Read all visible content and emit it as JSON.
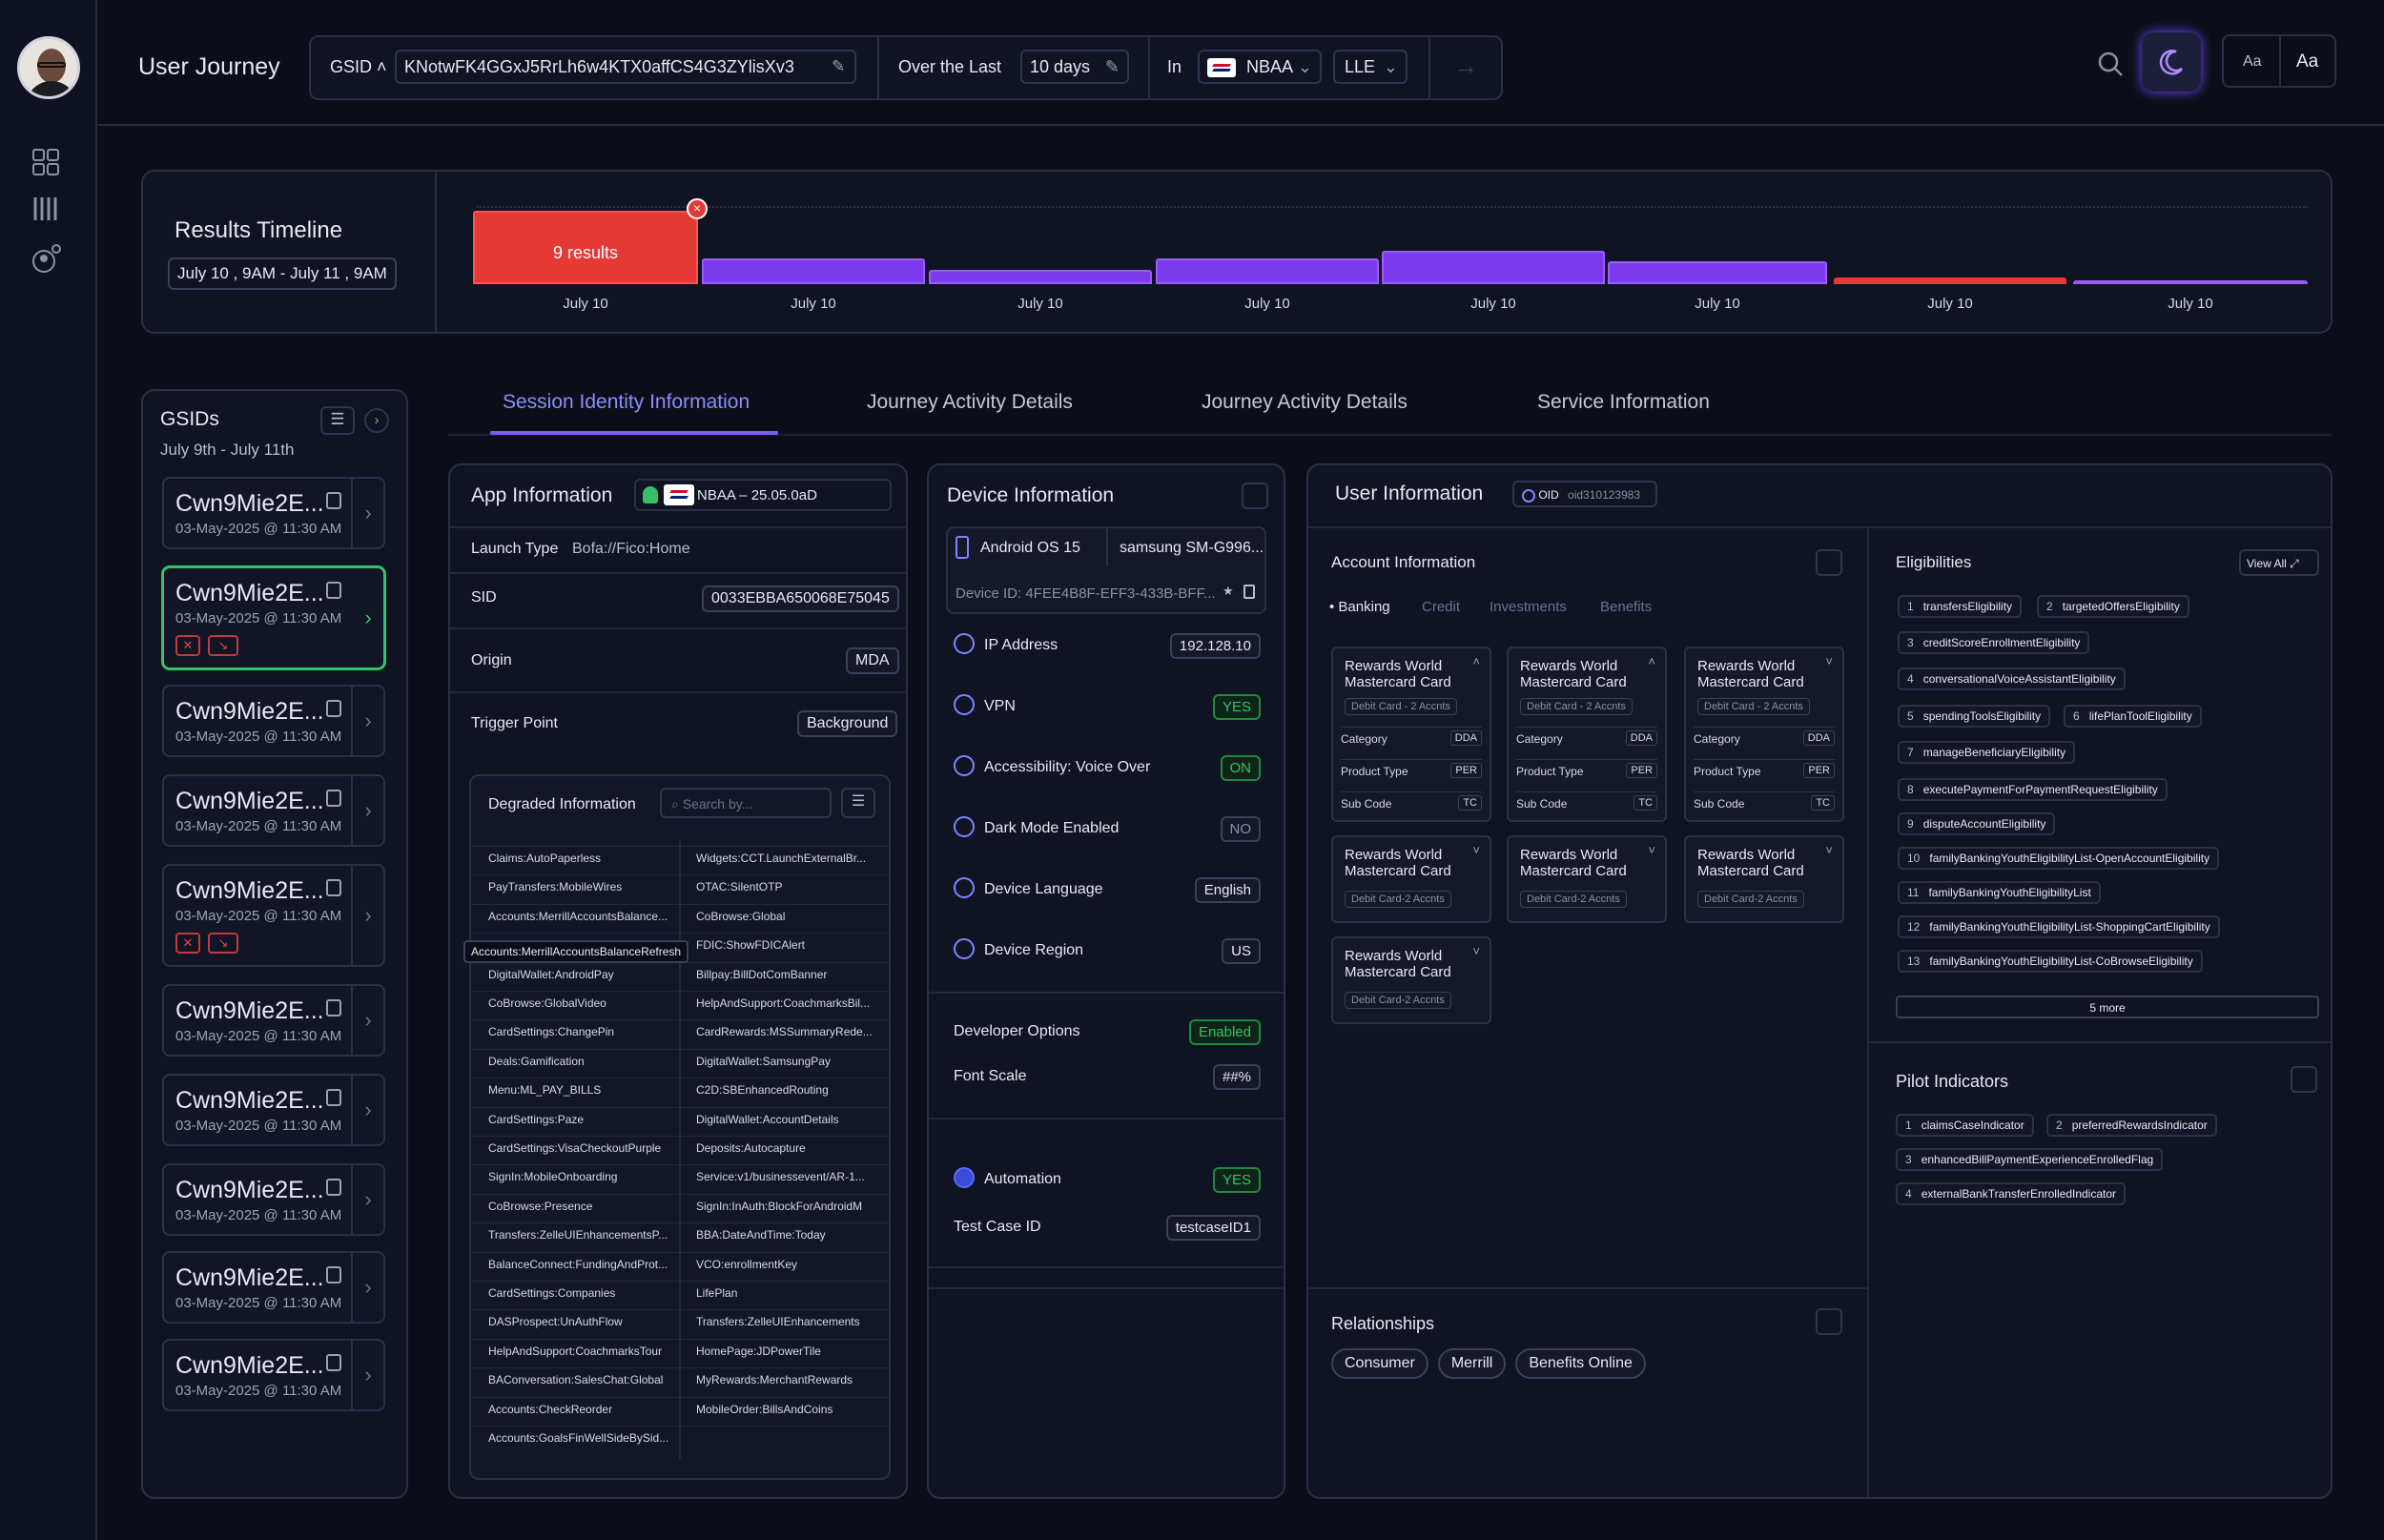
{
  "header": {
    "title": "User Journey",
    "gsid_label": "GSID",
    "gsid_value": "KNotwFK4GGxJ5RrLh6w4KTX0affCS4G3ZYlisXv3",
    "period_label": "Over the Last",
    "period_value": "10 days",
    "in_label": "In",
    "app_value": "NBAA",
    "env_value": "LLE",
    "font_small": "Aa",
    "font_large": "Aa"
  },
  "timeline": {
    "title": "Results Timeline",
    "range": "July 10 , 9AM - July 11 , 9AM",
    "selected_label": "9 results",
    "bars": [
      {
        "label": "July 10",
        "level": 0.92,
        "color": "#e53935"
      },
      {
        "label": "July 10",
        "level": 0.32,
        "color": "#7c3aed"
      },
      {
        "label": "July 10",
        "level": 0.18,
        "color": "#7c3aed"
      },
      {
        "label": "July 10",
        "level": 0.32,
        "color": "#7c3aed"
      },
      {
        "label": "July 10",
        "level": 0.42,
        "color": "#7c3aed"
      },
      {
        "label": "July 10",
        "level": 0.28,
        "color": "#7c3aed"
      },
      {
        "label": "July 10",
        "level": 0.08,
        "color": "#e53935"
      },
      {
        "label": "July 10",
        "level": 0.03,
        "color": "#7c3aed"
      }
    ]
  },
  "gsids": {
    "title": "GSIDs",
    "range": "July 9th - July 11th",
    "items": [
      {
        "name": "Cwn9Mie2E...",
        "date": "03-May-2025 @ 11:30 AM"
      },
      {
        "name": "Cwn9Mie2E...",
        "date": "03-May-2025 @ 11:30 AM"
      },
      {
        "name": "Cwn9Mie2E...",
        "date": "03-May-2025 @ 11:30 AM"
      },
      {
        "name": "Cwn9Mie2E...",
        "date": "03-May-2025 @ 11:30 AM"
      },
      {
        "name": "Cwn9Mie2E...",
        "date": "03-May-2025 @ 11:30 AM"
      },
      {
        "name": "Cwn9Mie2E...",
        "date": "03-May-2025 @ 11:30 AM"
      },
      {
        "name": "Cwn9Mie2E...",
        "date": "03-May-2025 @ 11:30 AM"
      },
      {
        "name": "Cwn9Mie2E...",
        "date": "03-May-2025 @ 11:30 AM"
      },
      {
        "name": "Cwn9Mie2E...",
        "date": "03-May-2025 @ 11:30 AM"
      },
      {
        "name": "Cwn9Mie2E...",
        "date": "03-May-2025 @ 11:30 AM"
      }
    ]
  },
  "tabs": [
    "Session Identity Information",
    "Journey Activity Details",
    "Journey Activity Details",
    "Service Information"
  ],
  "app_info": {
    "title": "App Information",
    "version": "NBAA – 25.05.0aD",
    "launch_label": "Launch Type",
    "launch_value": "Bofa://Fico:Home",
    "sid_label": "SID",
    "sid_value": "0033EBBA650068E75045",
    "origin_label": "Origin",
    "origin_value": "MDA",
    "trigger_label": "Trigger Point",
    "trigger_value": "Background",
    "degraded_title": "Degraded Information",
    "search_placeholder": "Search by...",
    "tooltip": "Accounts:MerrillAccountsBalanceRefresh",
    "degraded_left": [
      "Claims:AutoPaperless",
      "PayTransfers:MobileWires",
      "Accounts:MerrillAccountsBalance...",
      "",
      "DigitalWallet:AndroidPay",
      "CoBrowse:GlobalVideo",
      "CardSettings:ChangePin",
      "Deals:Gamification",
      "Menu:ML_PAY_BILLS",
      "CardSettings:Paze",
      "CardSettings:VisaCheckoutPurple",
      "SignIn:MobileOnboarding",
      "CoBrowse:Presence",
      "Transfers:ZelleUIEnhancementsP...",
      "BalanceConnect:FundingAndProt...",
      "CardSettings:Companies",
      "DASProspect:UnAuthFlow",
      "HelpAndSupport:CoachmarksTour",
      "BAConversation:SalesChat:Global",
      "Accounts:CheckReorder",
      "Accounts:GoalsFinWellSideBySid..."
    ],
    "degraded_right": [
      "Widgets:CCT.LaunchExternalBr...",
      "OTAC:SilentOTP",
      "CoBrowse:Global",
      "FDIC:ShowFDICAlert",
      "Billpay:BillDotComBanner",
      "HelpAndSupport:CoachmarksBil...",
      "CardRewards:MSSummaryRede...",
      "DigitalWallet:SamsungPay",
      "C2D:SBEnhancedRouting",
      "DigitalWallet:AccountDetails",
      "Deposits:Autocapture",
      "Service:v1/businessevent/AR-1...",
      "SignIn:InAuth:BlockForAndroidM",
      "BBA:DateAndTime:Today",
      "VCO:enrollmentKey",
      "LifePlan",
      "Transfers:ZelleUIEnhancements",
      "HomePage:JDPowerTile",
      "MyRewards:MerchantRewards",
      "MobileOrder:BillsAndCoins",
      ""
    ]
  },
  "device_info": {
    "title": "Device Information",
    "os": "Android OS 15",
    "model": "samsung SM-G996...",
    "device_id": "Device ID: 4FEE4B8F-EFF3-433B-BFF...",
    "ip_label": "IP Address",
    "ip_value": "192.128.10",
    "vpn_label": "VPN",
    "vpn_value": "YES",
    "access_label": "Accessibility: Voice Over",
    "access_value": "ON",
    "dark_label": "Dark Mode Enabled",
    "dark_value": "NO",
    "lang_label": "Device Language",
    "lang_value": "English",
    "region_label": "Device Region",
    "region_value": "US",
    "dev_label": "Developer Options",
    "dev_value": "Enabled",
    "font_label": "Font Scale",
    "font_value": "##%",
    "auto_label": "Automation",
    "auto_value": "YES",
    "test_label": "Test Case ID",
    "test_value": "testcaseID1"
  },
  "user_info": {
    "title": "User Information",
    "oid_label": "OID",
    "oid_value": "oid310123983",
    "account_title": "Account Information",
    "account_tabs": [
      "Banking",
      "Credit",
      "Investments",
      "Benefits"
    ],
    "card_title": "Rewards World Mastercard Card",
    "card_tag_a": "Debit Card - 2 Accnts",
    "card_tag_b": "Debit Card-2 Accnts",
    "category_label": "Category",
    "category_value": "DDA",
    "product_label": "Product Type",
    "product_value": "PER",
    "sub_label": "Sub Code",
    "sub_value": "TC",
    "relationships_title": "Relationships",
    "relationships": [
      "Consumer",
      "Merrill",
      "Benefits Online"
    ],
    "eligibilities_title": "Eligibilities",
    "view_all": "View All",
    "eligibilities": [
      {
        "n": "1",
        "v": "transfersEligibility"
      },
      {
        "n": "2",
        "v": "targetedOffersEligibility"
      },
      {
        "n": "3",
        "v": "creditScoreEnrollmentEligibility"
      },
      {
        "n": "4",
        "v": "conversationalVoiceAssistantEligibility"
      },
      {
        "n": "5",
        "v": "spendingToolsEligibility"
      },
      {
        "n": "6",
        "v": "lifePlanToolEligibility"
      },
      {
        "n": "7",
        "v": "manageBeneficiaryEligibility"
      },
      {
        "n": "8",
        "v": "executePaymentForPaymentRequestEligibility"
      },
      {
        "n": "9",
        "v": "disputeAccountEligibility"
      },
      {
        "n": "10",
        "v": "familyBankingYouthEligibilityList-OpenAccountEligibility"
      },
      {
        "n": "11",
        "v": "familyBankingYouthEligibilityList"
      },
      {
        "n": "12",
        "v": "familyBankingYouthEligibilityList-ShoppingCartEligibility"
      },
      {
        "n": "13",
        "v": "familyBankingYouthEligibilityList-CoBrowseEligibility"
      }
    ],
    "more": "5 more",
    "pilot_title": "Pilot Indicators",
    "pilots": [
      {
        "n": "1",
        "v": "claimsCaseIndicator"
      },
      {
        "n": "2",
        "v": "preferredRewardsIndicator"
      },
      {
        "n": "3",
        "v": "enhancedBillPaymentExperienceEnrolledFlag"
      },
      {
        "n": "4",
        "v": "externalBankTransferEnrolledIndicator"
      }
    ]
  },
  "colors": {
    "accent": "#7c5cff",
    "bar": "#7c3aed",
    "danger": "#e53935",
    "success": "#35c267"
  }
}
